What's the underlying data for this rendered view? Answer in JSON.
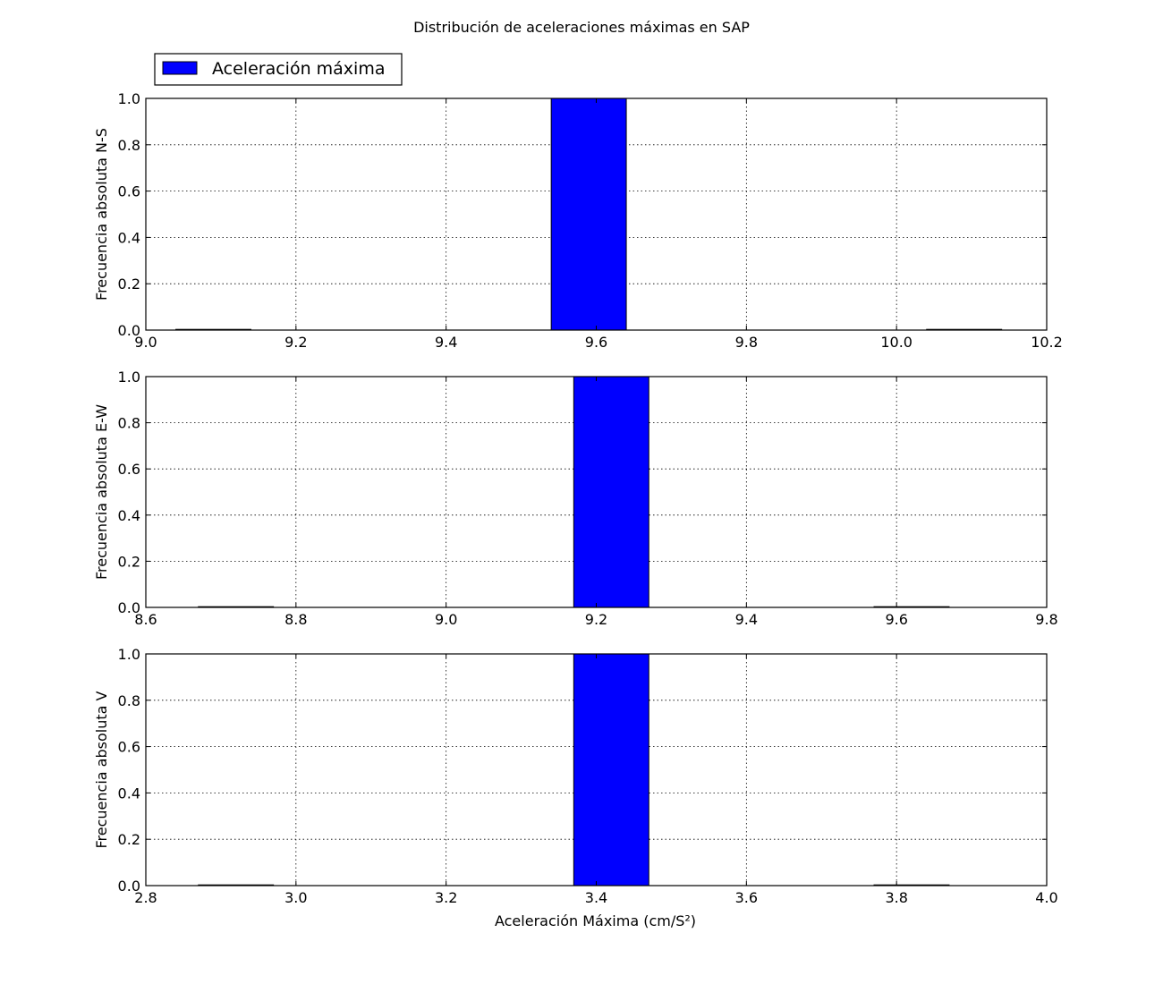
{
  "figure": {
    "title": "Distribución de aceleraciones máximas en SAP",
    "legend": {
      "label": "Aceleración máxima",
      "color": "#0000ff",
      "placement": "top-left"
    }
  },
  "chart_data": [
    {
      "type": "bar",
      "subplot": "top",
      "ylabel": "Frecuencia absoluta N-S",
      "xlabel": "",
      "xlim": [
        9.0,
        10.2
      ],
      "ylim": [
        0.0,
        1.0
      ],
      "xticks": [
        "9.0",
        "9.2",
        "9.4",
        "9.6",
        "9.8",
        "10.0",
        "10.2"
      ],
      "yticks": [
        "0.0",
        "0.2",
        "0.4",
        "0.6",
        "0.8",
        "1.0"
      ],
      "grid": true,
      "bin_width": 0.1,
      "bins": [
        {
          "x0": 9.04,
          "value": 0
        },
        {
          "x0": 9.54,
          "value": 1
        },
        {
          "x0": 10.04,
          "value": 0
        }
      ]
    },
    {
      "type": "bar",
      "subplot": "middle",
      "ylabel": "Frecuencia absoluta E-W",
      "xlabel": "",
      "xlim": [
        8.6,
        9.8
      ],
      "ylim": [
        0.0,
        1.0
      ],
      "xticks": [
        "8.6",
        "8.8",
        "9.0",
        "9.2",
        "9.4",
        "9.6",
        "9.8"
      ],
      "yticks": [
        "0.0",
        "0.2",
        "0.4",
        "0.6",
        "0.8",
        "1.0"
      ],
      "grid": true,
      "bin_width": 0.1,
      "bins": [
        {
          "x0": 8.67,
          "value": 0
        },
        {
          "x0": 9.17,
          "value": 1
        },
        {
          "x0": 9.57,
          "value": 0
        }
      ]
    },
    {
      "type": "bar",
      "subplot": "bottom",
      "ylabel": "Frecuencia absoluta V",
      "xlabel": "Aceleración Máxima (cm/S²)",
      "xlim": [
        2.8,
        4.0
      ],
      "ylim": [
        0.0,
        1.0
      ],
      "xticks": [
        "2.8",
        "3.0",
        "3.2",
        "3.4",
        "3.6",
        "3.8",
        "4.0"
      ],
      "yticks": [
        "0.0",
        "0.2",
        "0.4",
        "0.6",
        "0.8",
        "1.0"
      ],
      "grid": true,
      "bin_width": 0.1,
      "bins": [
        {
          "x0": 2.87,
          "value": 0
        },
        {
          "x0": 3.37,
          "value": 1
        },
        {
          "x0": 3.77,
          "value": 0
        }
      ]
    }
  ]
}
